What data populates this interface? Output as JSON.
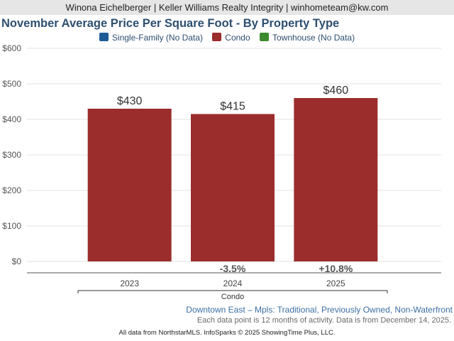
{
  "header": {
    "agent_line": "Winona Eichelberger | Keller Williams Realty Integrity | winhometeam@kw.com"
  },
  "chart_title": "November Average Price Per Square Foot - By Property Type",
  "legend": [
    {
      "label": "Single-Family (No Data)",
      "color": "#1e5a96"
    },
    {
      "label": "Condo",
      "color": "#9b2d2d"
    },
    {
      "label": "Townhouse (No Data)",
      "color": "#3c8a2e"
    }
  ],
  "chart_data": {
    "type": "bar",
    "categories": [
      "2023",
      "2024",
      "2025"
    ],
    "values": [
      430,
      415,
      460
    ],
    "data_labels": [
      "$430",
      "$415",
      "$460"
    ],
    "change_labels": [
      "",
      "-3.5%",
      "+10.8%"
    ],
    "group_label": "Condo",
    "bar_color": "#9b2d2d",
    "ylim": [
      0,
      600
    ],
    "yticks": [
      0,
      100,
      200,
      300,
      400,
      500,
      600
    ],
    "ytick_labels": [
      "$0",
      "$100",
      "$200",
      "$300",
      "$400",
      "$500",
      "$600"
    ],
    "grid": true,
    "legend_position": "top"
  },
  "subtitle": "Downtown East – Mpls: Traditional, Previously Owned, Non-Waterfront",
  "note": "Each data point is 12 months of activity. Data is from December 14, 2025.",
  "footer": "All data from NorthstarMLS. InfoSparks © 2025 ShowingTime Plus, LLC."
}
